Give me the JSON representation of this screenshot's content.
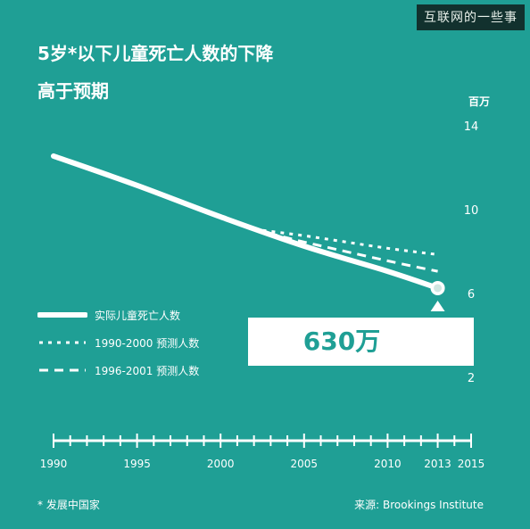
{
  "header": {
    "brand_label": "互联网的一些事",
    "title_line1": "5岁*以下儿童死亡人数的下降",
    "title_line2": "高于预期"
  },
  "chart_data": {
    "type": "line",
    "y_unit": "百万",
    "xlim": [
      1990,
      2015
    ],
    "ylim": [
      2,
      14
    ],
    "x_ticks": [
      1990,
      1995,
      2000,
      2005,
      2010,
      2013,
      2015
    ],
    "y_ticks": [
      2,
      6,
      10,
      14
    ],
    "grid": false,
    "series": [
      {
        "name": "实际儿童死亡人数",
        "style": "solid",
        "x": [
          1990,
          1995,
          2000,
          2005,
          2010,
          2013
        ],
        "y": [
          12.6,
          11.2,
          9.7,
          8.3,
          7.1,
          6.3
        ]
      },
      {
        "name": "1990-2000 预测人数",
        "style": "dotted",
        "x": [
          2002,
          2005,
          2010,
          2013
        ],
        "y": [
          9.1,
          8.8,
          8.2,
          7.9
        ]
      },
      {
        "name": "1996-2001 预测人数",
        "style": "dashed",
        "x": [
          2002,
          2005,
          2010,
          2013
        ],
        "y": [
          9.1,
          8.5,
          7.6,
          7.1
        ]
      }
    ],
    "callout": {
      "x": 2013,
      "y": 6.3,
      "text": "630万"
    },
    "colors": {
      "background": "#1f9f95",
      "line": "#ffffff",
      "callout_text": "#1f9f95"
    }
  },
  "legend": {
    "items": [
      {
        "label": "实际儿童死亡人数",
        "style": "solid"
      },
      {
        "label": "1990-2000 预测人数",
        "style": "dotted"
      },
      {
        "label": "1996-2001 预测人数",
        "style": "dashed"
      }
    ]
  },
  "footer": {
    "footnote": "* 发展中国家",
    "source": "来源: Brookings Institute"
  }
}
